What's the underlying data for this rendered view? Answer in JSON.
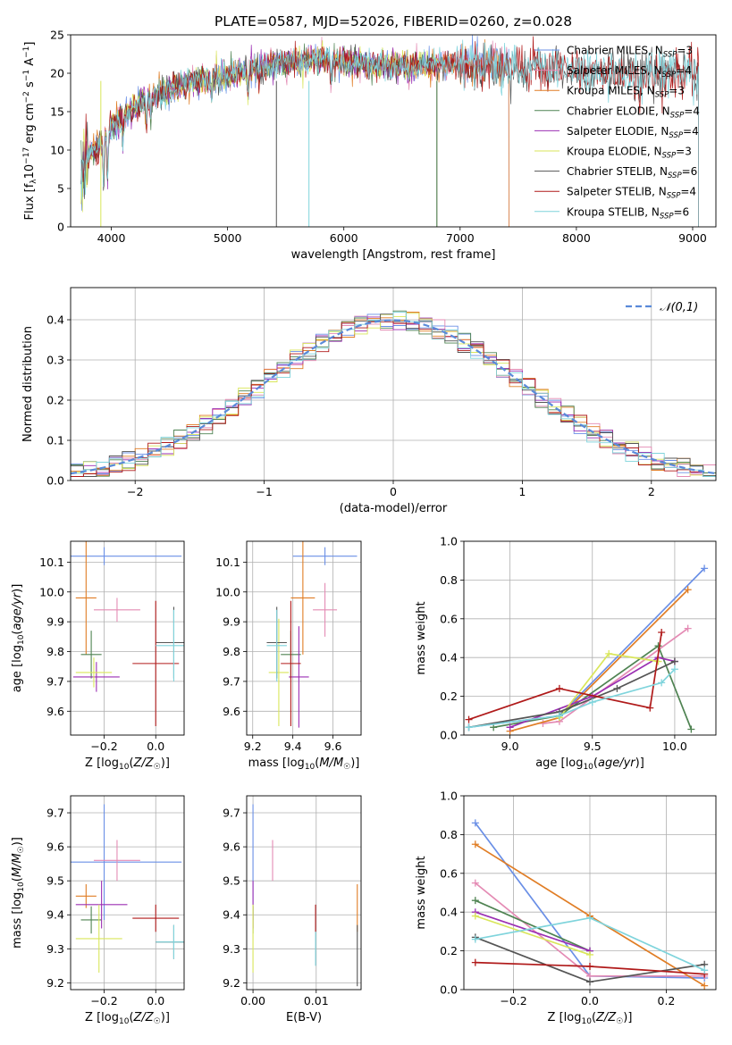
{
  "figure": {
    "title": "PLATE=0587, MJD=52026, FIBERID=0260, z=0.028"
  },
  "colors": {
    "Chabrier MILES": "#6a8fe6",
    "Salpeter MILES": "#e48bb4",
    "Kroupa MILES": "#e07d25",
    "Chabrier ELODIE": "#4f8352",
    "Salpeter ELODIE": "#9b2fb3",
    "Kroupa ELODIE": "#d9e65a",
    "Chabrier STELIB": "#555555",
    "Salpeter STELIB": "#b01a1a",
    "Kroupa STELIB": "#7fd4dc",
    "gaussian": "#5a8ad9",
    "grid": "#b0b0b0"
  },
  "chart_data": [
    {
      "id": "spectrum",
      "type": "line",
      "xlabel": "wavelength [Angstrom, rest frame]",
      "ylabel": "Flux [f_λ 10^-17 erg cm^-2 s^-1 A^-1]",
      "xlim": [
        3650,
        9200
      ],
      "ylim": [
        0,
        25
      ],
      "xticks": [
        4000,
        5000,
        6000,
        7000,
        8000,
        9000
      ],
      "yticks": [
        0,
        5,
        10,
        15,
        20,
        25
      ],
      "grid": false,
      "legend_placement": "top-right",
      "series": [
        {
          "name": "Chabrier MILES",
          "nssp": "3",
          "range": [
            3740,
            7420
          ]
        },
        {
          "name": "Salpeter MILES",
          "nssp": "4",
          "range": [
            3740,
            7420
          ]
        },
        {
          "name": "Kroupa MILES",
          "nssp": "3",
          "range": [
            3740,
            7420
          ]
        },
        {
          "name": "Chabrier ELODIE",
          "nssp": "4",
          "range": [
            3740,
            6800
          ]
        },
        {
          "name": "Salpeter ELODIE",
          "nssp": "4",
          "range": [
            3740,
            6800
          ]
        },
        {
          "name": "Kroupa ELODIE",
          "nssp": "3",
          "range": [
            3740,
            6800
          ]
        },
        {
          "name": "Chabrier STELIB",
          "nssp": "6",
          "range": [
            3740,
            9050
          ]
        },
        {
          "name": "Salpeter STELIB",
          "nssp": "4",
          "range": [
            3740,
            9050
          ]
        },
        {
          "name": "Kroupa STELIB",
          "nssp": "6",
          "range": [
            3740,
            9050
          ]
        }
      ],
      "continuum": {
        "x": [
          3720,
          3800,
          3900,
          4000,
          4100,
          4300,
          4500,
          4700,
          5000,
          5200,
          5500,
          5800,
          6000,
          6300,
          6600,
          7000,
          7500,
          8000,
          8500,
          9000
        ],
        "y": [
          6.5,
          9,
          11,
          13,
          14.5,
          16.5,
          18,
          19,
          19.5,
          20.5,
          21.5,
          21.8,
          21.5,
          21,
          21,
          21.2,
          20.8,
          20.5,
          20,
          20
        ]
      }
    },
    {
      "id": "residuals",
      "type": "histogram",
      "xlabel": "(data-model)/error",
      "ylabel": "Normed distribution",
      "xlim": [
        -2.5,
        2.5
      ],
      "ylim": [
        0,
        0.48
      ],
      "xticks": [
        -2,
        -1,
        0,
        1,
        2
      ],
      "yticks": [
        0.0,
        0.1,
        0.2,
        0.3,
        0.4
      ],
      "grid": true,
      "bin_width": 0.1,
      "legend": [
        {
          "label": "𝒩(0,1)",
          "style": "dashed"
        }
      ],
      "legend_placement": "top-right",
      "gaussian": {
        "mean": 0,
        "sigma": 1
      }
    },
    {
      "id": "age-vs-Z",
      "type": "scatter",
      "xlabel": "Z [log10(Z/Z☉)]",
      "ylabel": "age [log10(age/yr)]",
      "xlim": [
        -0.33,
        0.11
      ],
      "ylim": [
        9.52,
        10.17
      ],
      "xticks": [
        -0.2,
        0.0
      ],
      "yticks": [
        9.6,
        9.7,
        9.8,
        9.9,
        10.0,
        10.1
      ],
      "grid": true,
      "points": [
        {
          "series": "Chabrier MILES",
          "x": -0.2,
          "y": 10.12,
          "xerr": 0.3,
          "yerr": 0.03
        },
        {
          "series": "Salpeter MILES",
          "x": -0.15,
          "y": 9.94,
          "xerr": 0.09,
          "yerr": 0.04
        },
        {
          "series": "Kroupa MILES",
          "x": -0.27,
          "y": 9.98,
          "xerr": 0.04,
          "yerr": 0.19
        },
        {
          "series": "Chabrier ELODIE",
          "x": -0.25,
          "y": 9.79,
          "xerr": 0.04,
          "yerr": 0.08
        },
        {
          "series": "Salpeter ELODIE",
          "x": -0.23,
          "y": 9.715,
          "xerr": 0.09,
          "yerr": 0.05
        },
        {
          "series": "Kroupa ELODIE",
          "x": -0.24,
          "y": 9.73,
          "xerr": 0.07,
          "yerr": 0.05
        },
        {
          "series": "Chabrier STELIB",
          "x": 0.07,
          "y": 9.83,
          "xerr": 0.07,
          "yerr": 0.12
        },
        {
          "series": "Salpeter STELIB",
          "x": 0.0,
          "y": 9.76,
          "xerr": 0.09,
          "yerr": 0.21
        },
        {
          "series": "Kroupa STELIB",
          "x": 0.07,
          "y": 9.82,
          "xerr": 0.07,
          "yerr": 0.12
        }
      ]
    },
    {
      "id": "age-vs-mass",
      "type": "scatter",
      "xlabel": "mass [log10(M/M☉)]",
      "ylabel": "",
      "xlim": [
        9.17,
        9.74
      ],
      "ylim": [
        9.52,
        10.17
      ],
      "xticks": [
        9.2,
        9.4,
        9.6
      ],
      "yticks": [
        9.6,
        9.7,
        9.8,
        9.9,
        10.0,
        10.1
      ],
      "grid": true,
      "points": [
        {
          "series": "Chabrier MILES",
          "x": 9.56,
          "y": 10.12,
          "xerr": 0.16,
          "yerr": 0.03
        },
        {
          "series": "Salpeter MILES",
          "x": 9.56,
          "y": 9.94,
          "xerr": 0.06,
          "yerr": 0.09
        },
        {
          "series": "Kroupa MILES",
          "x": 9.45,
          "y": 9.98,
          "xerr": 0.06,
          "yerr": 0.19
        },
        {
          "series": "Chabrier ELODIE",
          "x": 9.39,
          "y": 9.79,
          "xerr": 0.05,
          "yerr": 0.08
        },
        {
          "series": "Salpeter ELODIE",
          "x": 9.43,
          "y": 9.715,
          "xerr": 0.05,
          "yerr": 0.17
        },
        {
          "series": "Kroupa ELODIE",
          "x": 9.33,
          "y": 9.73,
          "xerr": 0.05,
          "yerr": 0.18
        },
        {
          "series": "Chabrier STELIB",
          "x": 9.32,
          "y": 9.83,
          "xerr": 0.05,
          "yerr": 0.12
        },
        {
          "series": "Salpeter STELIB",
          "x": 9.39,
          "y": 9.76,
          "xerr": 0.05,
          "yerr": 0.21
        },
        {
          "series": "Kroupa STELIB",
          "x": 9.32,
          "y": 9.82,
          "xerr": 0.05,
          "yerr": 0.12
        }
      ]
    },
    {
      "id": "weight-vs-age",
      "type": "line",
      "xlabel": "age [log10(age/yr)]",
      "ylabel": "mass weight",
      "xlim": [
        8.72,
        10.25
      ],
      "ylim": [
        0,
        1
      ],
      "xticks": [
        9.0,
        9.5,
        10.0
      ],
      "yticks": [
        0.0,
        0.2,
        0.4,
        0.6,
        0.8,
        1.0
      ],
      "grid": true,
      "series": [
        {
          "name": "Chabrier MILES",
          "points": [
            [
              8.75,
              0.04
            ],
            [
              9.3,
              0.1
            ],
            [
              10.18,
              0.86
            ]
          ]
        },
        {
          "name": "Salpeter MILES",
          "points": [
            [
              9.2,
              0.06
            ],
            [
              9.3,
              0.07
            ],
            [
              10.08,
              0.55
            ]
          ]
        },
        {
          "name": "Kroupa MILES",
          "points": [
            [
              9.0,
              0.02
            ],
            [
              9.3,
              0.09
            ],
            [
              10.08,
              0.75
            ]
          ]
        },
        {
          "name": "Chabrier ELODIE",
          "points": [
            [
              8.9,
              0.04
            ],
            [
              9.3,
              0.1
            ],
            [
              9.9,
              0.46
            ],
            [
              10.1,
              0.03
            ]
          ]
        },
        {
          "name": "Salpeter ELODIE",
          "points": [
            [
              9.0,
              0.04
            ],
            [
              9.5,
              0.2
            ],
            [
              9.9,
              0.4
            ],
            [
              10.0,
              0.38
            ]
          ]
        },
        {
          "name": "Kroupa ELODIE",
          "points": [
            [
              9.3,
              0.09
            ],
            [
              9.6,
              0.42
            ],
            [
              9.9,
              0.38
            ]
          ]
        },
        {
          "name": "Chabrier STELIB",
          "points": [
            [
              8.75,
              0.04
            ],
            [
              9.3,
              0.12
            ],
            [
              9.65,
              0.24
            ],
            [
              10.0,
              0.38
            ]
          ]
        },
        {
          "name": "Salpeter STELIB",
          "points": [
            [
              8.75,
              0.08
            ],
            [
              9.3,
              0.24
            ],
            [
              9.85,
              0.14
            ],
            [
              9.92,
              0.53
            ]
          ]
        },
        {
          "name": "Kroupa STELIB",
          "points": [
            [
              8.75,
              0.04
            ],
            [
              9.3,
              0.1
            ],
            [
              9.5,
              0.17
            ],
            [
              9.92,
              0.27
            ],
            [
              10.0,
              0.34
            ]
          ]
        }
      ]
    },
    {
      "id": "mass-vs-Z",
      "type": "scatter",
      "xlabel": "Z [log10(Z/Z☉)]",
      "ylabel": "mass [log10(M/M☉)]",
      "xlim": [
        -0.33,
        0.11
      ],
      "ylim": [
        9.18,
        9.75
      ],
      "xticks": [
        -0.2,
        0.0
      ],
      "yticks": [
        9.2,
        9.3,
        9.4,
        9.5,
        9.6,
        9.7
      ],
      "grid": true,
      "points": [
        {
          "series": "Chabrier MILES",
          "x": -0.2,
          "y": 9.555,
          "xerr": 0.3,
          "yerr": 0.17
        },
        {
          "series": "Salpeter MILES",
          "x": -0.15,
          "y": 9.56,
          "xerr": 0.09,
          "yerr": 0.06
        },
        {
          "series": "Kroupa MILES",
          "x": -0.27,
          "y": 9.455,
          "xerr": 0.04,
          "yerr": 0.035
        },
        {
          "series": "Chabrier ELODIE",
          "x": -0.25,
          "y": 9.385,
          "xerr": 0.04,
          "yerr": 0.04
        },
        {
          "series": "Salpeter ELODIE",
          "x": -0.21,
          "y": 9.43,
          "xerr": 0.1,
          "yerr": 0.07
        },
        {
          "series": "Kroupa ELODIE",
          "x": -0.22,
          "y": 9.33,
          "xerr": 0.09,
          "yerr": 0.1
        },
        {
          "series": "Chabrier STELIB",
          "x": 0.07,
          "y": 9.32,
          "xerr": 0.07,
          "yerr": 0.05
        },
        {
          "series": "Salpeter STELIB",
          "x": 0.0,
          "y": 9.39,
          "xerr": 0.09,
          "yerr": 0.04
        },
        {
          "series": "Kroupa STELIB",
          "x": 0.07,
          "y": 9.32,
          "xerr": 0.07,
          "yerr": 0.05
        }
      ]
    },
    {
      "id": "mass-vs-ebv",
      "type": "scatter",
      "xlabel": "E(B-V)",
      "ylabel": "",
      "xlim": [
        -0.001,
        0.0171
      ],
      "ylim": [
        9.18,
        9.75
      ],
      "xticks": [
        0.0,
        0.01
      ],
      "xticklabels": [
        "0.00",
        "0.01"
      ],
      "yticks": [
        9.2,
        9.3,
        9.4,
        9.5,
        9.6,
        9.7
      ],
      "grid": true,
      "points": [
        {
          "series": "Chabrier MILES",
          "x": 0.0,
          "y": 9.555,
          "yerr": 0.17
        },
        {
          "series": "Salpeter MILES",
          "x": 0.0031,
          "y": 9.56,
          "yerr": 0.06
        },
        {
          "series": "Kroupa MILES",
          "x": 0.0165,
          "y": 9.42,
          "yerr": 0.07
        },
        {
          "series": "Chabrier ELODIE",
          "x": 0.0,
          "y": 9.385,
          "yerr": 0.04
        },
        {
          "series": "Salpeter ELODIE",
          "x": 0.0,
          "y": 9.43,
          "yerr": 0.07
        },
        {
          "series": "Kroupa ELODIE",
          "x": 0.0,
          "y": 9.33,
          "yerr": 0.1
        },
        {
          "series": "Chabrier STELIB",
          "x": 0.0165,
          "y": 9.28,
          "yerr": 0.09
        },
        {
          "series": "Salpeter STELIB",
          "x": 0.0099,
          "y": 9.39,
          "yerr": 0.04
        },
        {
          "series": "Kroupa STELIB",
          "x": 0.0099,
          "y": 9.3,
          "yerr": 0.05
        }
      ]
    },
    {
      "id": "weight-vs-Z",
      "type": "line",
      "xlabel": "Z [log10(Z/Z☉)]",
      "ylabel": "mass weight",
      "xlim": [
        -0.33,
        0.33
      ],
      "ylim": [
        0,
        1
      ],
      "xticks": [
        -0.2,
        0.0,
        0.2
      ],
      "yticks": [
        0.0,
        0.2,
        0.4,
        0.6,
        0.8,
        1.0
      ],
      "grid": true,
      "series": [
        {
          "name": "Chabrier MILES",
          "points": [
            [
              -0.3,
              0.86
            ],
            [
              0.0,
              0.07
            ],
            [
              0.3,
              0.06
            ]
          ]
        },
        {
          "name": "Salpeter MILES",
          "points": [
            [
              -0.3,
              0.55
            ],
            [
              0.0,
              0.07
            ],
            [
              0.3,
              0.07
            ]
          ]
        },
        {
          "name": "Kroupa MILES",
          "points": [
            [
              -0.3,
              0.75
            ],
            [
              0.0,
              0.38
            ],
            [
              0.3,
              0.02
            ]
          ]
        },
        {
          "name": "Chabrier ELODIE",
          "points": [
            [
              -0.3,
              0.46
            ],
            [
              0.0,
              0.2
            ]
          ]
        },
        {
          "name": "Salpeter ELODIE",
          "points": [
            [
              -0.3,
              0.4
            ],
            [
              0.0,
              0.2
            ]
          ]
        },
        {
          "name": "Kroupa ELODIE",
          "points": [
            [
              -0.3,
              0.38
            ],
            [
              0.0,
              0.18
            ]
          ]
        },
        {
          "name": "Chabrier STELIB",
          "points": [
            [
              -0.3,
              0.27
            ],
            [
              0.0,
              0.04
            ],
            [
              0.3,
              0.13
            ]
          ]
        },
        {
          "name": "Salpeter STELIB",
          "points": [
            [
              -0.3,
              0.14
            ],
            [
              0.0,
              0.12
            ],
            [
              0.3,
              0.08
            ]
          ]
        },
        {
          "name": "Kroupa STELIB",
          "points": [
            [
              -0.3,
              0.26
            ],
            [
              0.0,
              0.37
            ],
            [
              0.3,
              0.1
            ]
          ]
        }
      ]
    }
  ]
}
